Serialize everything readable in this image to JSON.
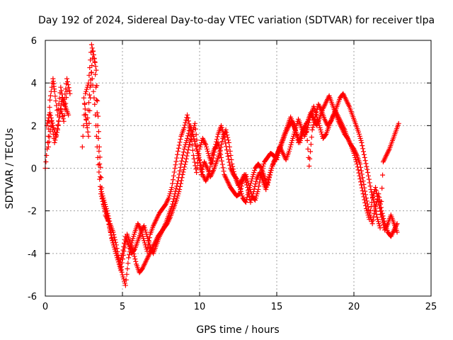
{
  "chart_data": {
    "type": "scatter",
    "title": "Day 192 of 2024, Sidereal Day-to-day VTEC variation (SDTVAR) for receiver tlpa",
    "xlabel": "GPS time / hours",
    "ylabel": "SDTVAR / TECUs",
    "xlim": [
      0,
      25
    ],
    "ylim": [
      -6,
      6
    ],
    "xticks": [
      "0",
      "5",
      "10",
      "15",
      "20",
      "25"
    ],
    "yticks": [
      "-6",
      "-4",
      "-2",
      "0",
      "2",
      "4",
      "6"
    ],
    "grid": true,
    "marker": "+",
    "color": "#ff0000",
    "series": [
      {
        "x": [
          0.0,
          0.2,
          0.3,
          0.5,
          0.6,
          0.8,
          1.0,
          1.2,
          1.4,
          1.6,
          2.4,
          2.6,
          2.8,
          3.0,
          3.2,
          3.4,
          3.6,
          3.8,
          4.0,
          4.2,
          4.4,
          4.6,
          4.8,
          5.0,
          5.2,
          5.4,
          5.6,
          5.8,
          6.0,
          6.2,
          6.4,
          6.6,
          6.8,
          7.0,
          7.2,
          7.4,
          7.6,
          7.8,
          8.0,
          8.2,
          8.4,
          8.6,
          8.8,
          9.0,
          9.2,
          9.4,
          9.6,
          9.8,
          10.0,
          10.2,
          10.4,
          10.6,
          10.8,
          11.0,
          11.2,
          11.4,
          11.6,
          11.8,
          12.0,
          12.2,
          12.4,
          12.6,
          12.8,
          13.0,
          13.2,
          13.4,
          13.6,
          13.8,
          14.0,
          14.2,
          14.4,
          14.6,
          14.8,
          15.0,
          15.2,
          15.4,
          15.6,
          15.8,
          16.0,
          16.2,
          16.4,
          16.6,
          16.8,
          17.0,
          17.2,
          17.4,
          17.6,
          17.8,
          18.0,
          18.2,
          18.4,
          18.6,
          18.8,
          19.0,
          19.2,
          19.4,
          19.6,
          19.8,
          20.0,
          20.2,
          20.4,
          20.6,
          20.8,
          21.0,
          21.2,
          21.4,
          21.6,
          21.8,
          22.0,
          22.2,
          22.4,
          22.6,
          22.8
        ],
        "y": [
          0.0,
          1.5,
          3.2,
          4.2,
          3.6,
          2.5,
          3.8,
          3.0,
          4.2,
          3.5,
          1.0,
          3.5,
          4.0,
          5.8,
          5.0,
          2.0,
          -1.0,
          -1.5,
          -2.0,
          -2.6,
          -3.0,
          -3.6,
          -4.4,
          -5.0,
          -5.5,
          -4.2,
          -3.5,
          -3.0,
          -2.6,
          -2.9,
          -3.4,
          -3.9,
          -3.1,
          -2.7,
          -2.4,
          -2.1,
          -1.9,
          -1.7,
          -1.4,
          -0.9,
          0.0,
          0.8,
          1.5,
          1.9,
          2.5,
          1.8,
          0.6,
          -0.2,
          0.9,
          1.4,
          1.1,
          0.6,
          0.2,
          0.9,
          1.2,
          0.5,
          -0.3,
          -0.6,
          -0.9,
          -1.1,
          -1.3,
          -1.2,
          -0.6,
          -0.3,
          -0.8,
          -1.3,
          -1.5,
          -1.0,
          -0.2,
          0.3,
          0.5,
          0.7,
          0.6,
          0.4,
          0.9,
          1.3,
          1.7,
          2.0,
          2.2,
          1.8,
          1.2,
          1.6,
          1.9,
          2.2,
          2.6,
          2.3,
          2.0,
          2.4,
          2.8,
          3.1,
          3.4,
          3.0,
          2.6,
          2.2,
          1.9,
          1.6,
          1.4,
          1.1,
          0.9,
          0.6,
          0.2,
          -0.6,
          -1.4,
          -2.1,
          -2.6,
          -1.8,
          -1.2,
          -2.0,
          -2.6,
          -3.0,
          -3.2,
          -2.9,
          -2.6
        ]
      },
      {
        "x": [
          0.1,
          0.3,
          0.5,
          0.7,
          0.9,
          1.1,
          1.3,
          1.5,
          2.5,
          2.7,
          2.9,
          3.1,
          3.3,
          3.5,
          3.7,
          3.9,
          4.1,
          4.3,
          4.5,
          4.7,
          4.9,
          5.1,
          5.3,
          5.5,
          5.7,
          5.9,
          6.1,
          6.3,
          6.5,
          6.7,
          6.9,
          7.1,
          7.3,
          7.5,
          7.7,
          7.9,
          8.1,
          8.3,
          8.5,
          8.7,
          8.9,
          9.1,
          9.3,
          9.5,
          9.7,
          9.9,
          10.1,
          10.3,
          10.5,
          10.7,
          10.9,
          11.1,
          11.3,
          11.5,
          11.7,
          11.9,
          12.1,
          12.3,
          12.5,
          12.7,
          12.9,
          13.1,
          13.3,
          13.5,
          13.7,
          13.9,
          14.1,
          14.3,
          14.5,
          14.7,
          14.9,
          15.1,
          15.3,
          15.5,
          15.7,
          15.9,
          16.1,
          16.3,
          16.5,
          16.7,
          16.9,
          17.1,
          17.3,
          17.5,
          17.7,
          17.9,
          18.1,
          18.3,
          18.5,
          18.7,
          18.9,
          19.1,
          19.3,
          19.5,
          19.7,
          19.9,
          20.1,
          20.3,
          20.5,
          20.7,
          20.9,
          21.1,
          21.3,
          21.5,
          21.7,
          21.9,
          22.1,
          22.3,
          22.5,
          22.7,
          22.9
        ],
        "y": [
          2.0,
          2.6,
          2.0,
          1.5,
          2.4,
          3.3,
          2.9,
          2.5,
          3.3,
          2.0,
          3.8,
          5.5,
          4.6,
          1.0,
          -1.4,
          -2.2,
          -2.5,
          -3.3,
          -3.8,
          -4.3,
          -4.8,
          -3.9,
          -3.1,
          -3.5,
          -3.9,
          -4.5,
          -4.9,
          -4.7,
          -4.4,
          -4.1,
          -3.8,
          -3.5,
          -3.2,
          -3.0,
          -2.8,
          -2.6,
          -2.3,
          -1.9,
          -1.5,
          -1.0,
          -0.3,
          0.3,
          1.0,
          1.6,
          2.1,
          0.8,
          -0.3,
          0.3,
          0.0,
          -0.4,
          -0.1,
          0.3,
          0.7,
          1.4,
          1.8,
          1.2,
          0.2,
          -0.4,
          -0.8,
          -0.6,
          -0.3,
          -0.9,
          -1.6,
          -1.1,
          -0.5,
          -0.2,
          -0.6,
          -1.0,
          -0.4,
          0.1,
          0.4,
          0.8,
          1.2,
          1.6,
          2.0,
          2.4,
          2.0,
          1.6,
          1.2,
          1.7,
          2.1,
          0.1,
          1.8,
          2.4,
          3.0,
          2.7,
          2.3,
          2.0,
          2.2,
          2.5,
          2.9,
          3.3,
          3.5,
          3.2,
          2.9,
          2.5,
          2.1,
          1.7,
          1.2,
          0.5,
          -0.2,
          -1.0,
          -1.6,
          -2.3,
          -2.8,
          0.3,
          0.6,
          0.9,
          1.3,
          1.7,
          2.1
        ]
      },
      {
        "x": [
          0.2,
          0.4,
          0.6,
          0.8,
          1.0,
          1.2,
          1.4,
          2.6,
          2.8,
          3.0,
          3.2,
          3.4,
          3.6,
          3.8,
          4.0,
          4.2,
          4.4,
          4.6,
          4.8,
          5.0,
          5.2,
          5.4,
          5.6,
          5.8,
          6.0,
          6.2,
          6.4,
          6.6,
          6.8,
          7.0,
          7.2,
          7.4,
          7.6,
          7.8,
          8.0,
          8.2,
          8.4,
          8.6,
          8.8,
          9.0,
          9.2,
          9.4,
          9.6,
          9.8,
          10.0,
          10.2,
          10.4,
          10.6,
          10.8,
          11.0,
          11.2,
          11.4,
          11.6,
          11.8,
          12.0,
          12.2,
          12.4,
          12.6,
          12.8,
          13.0,
          13.2,
          13.4,
          13.6,
          13.8,
          14.0,
          14.2,
          14.4,
          14.6,
          14.8,
          15.0,
          15.2,
          15.4,
          15.6,
          15.8,
          16.0,
          16.2,
          16.4,
          16.6,
          16.8,
          17.0,
          17.2,
          17.4,
          17.6,
          17.8,
          18.0,
          18.2,
          18.4,
          18.6,
          18.8,
          19.0,
          19.2,
          19.4,
          19.6,
          19.8,
          20.0,
          20.2,
          20.4,
          20.6,
          20.8,
          21.0,
          21.2,
          21.4,
          21.6,
          21.8,
          22.0,
          22.2,
          22.4,
          22.6,
          22.8
        ],
        "y": [
          1.0,
          2.2,
          1.2,
          1.8,
          2.8,
          2.2,
          3.6,
          2.5,
          1.5,
          4.5,
          3.0,
          0.5,
          -1.2,
          -1.8,
          -2.2,
          -2.9,
          -3.5,
          -4.0,
          -4.5,
          -4.0,
          -3.2,
          -3.6,
          -4.0,
          -3.8,
          -3.4,
          -3.0,
          -2.7,
          -3.2,
          -3.7,
          -4.0,
          -3.6,
          -3.2,
          -2.9,
          -2.6,
          -2.2,
          -1.8,
          -1.2,
          -0.6,
          0.2,
          0.9,
          1.4,
          2.0,
          1.5,
          0.9,
          0.4,
          -0.3,
          -0.6,
          -0.3,
          0.6,
          1.0,
          1.6,
          2.0,
          1.5,
          0.7,
          0.0,
          -0.3,
          -0.5,
          -0.9,
          -1.4,
          -1.6,
          -1.0,
          -0.5,
          0.0,
          0.2,
          0.0,
          -0.4,
          -0.8,
          -0.2,
          0.3,
          0.6,
          1.0,
          0.7,
          0.4,
          0.8,
          1.3,
          1.8,
          2.3,
          1.9,
          1.5,
          1.9,
          2.5,
          2.9,
          2.4,
          1.9,
          1.4,
          1.6,
          2.0,
          2.4,
          2.7,
          2.4,
          2.1,
          1.8,
          1.4,
          1.1,
          0.7,
          0.2,
          -0.5,
          -1.2,
          -1.9,
          -2.4,
          -1.4,
          -0.9,
          -1.6,
          -2.3,
          -2.9,
          -2.6,
          -2.2,
          -2.6,
          -3.0
        ]
      }
    ]
  }
}
